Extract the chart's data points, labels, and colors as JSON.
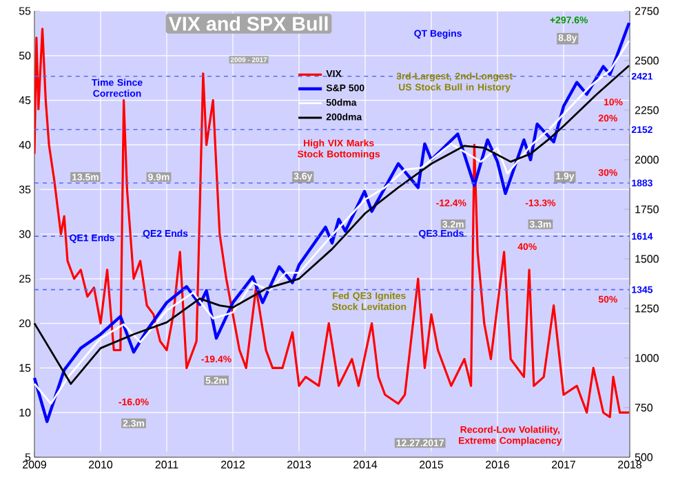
{
  "chart_data": {
    "type": "line",
    "title": "VIX and SPX Bull",
    "subtitle": "2009 - 2017",
    "xlim": [
      2009,
      2018
    ],
    "xticks": [
      2009,
      2010,
      2011,
      2012,
      2013,
      2014,
      2015,
      2016,
      2017,
      2018
    ],
    "ylim": [
      5,
      55
    ],
    "yticks": [
      5,
      10,
      15,
      20,
      25,
      30,
      35,
      40,
      45,
      50,
      55
    ],
    "y2lim": [
      500,
      2750
    ],
    "y2ticks": [
      500,
      750,
      1000,
      1250,
      1500,
      1750,
      2000,
      2250,
      2500,
      2750
    ],
    "grid": true,
    "legend": "top",
    "line_style": "solid",
    "series": [
      {
        "name": "VIX",
        "color": "#ff0000",
        "x": [
          2009.0,
          2009.03,
          2009.06,
          2009.12,
          2009.17,
          2009.22,
          2009.3,
          2009.4,
          2009.45,
          2009.5,
          2009.6,
          2009.7,
          2009.8,
          2009.9,
          2010.0,
          2010.1,
          2010.2,
          2010.3,
          2010.35,
          2010.4,
          2010.45,
          2010.5,
          2010.6,
          2010.7,
          2010.8,
          2010.9,
          2011.0,
          2011.1,
          2011.2,
          2011.3,
          2011.45,
          2011.55,
          2011.6,
          2011.7,
          2011.8,
          2011.9,
          2012.0,
          2012.1,
          2012.2,
          2012.35,
          2012.5,
          2012.6,
          2012.75,
          2012.9,
          2013.0,
          2013.1,
          2013.3,
          2013.45,
          2013.6,
          2013.8,
          2013.9,
          2014.1,
          2014.2,
          2014.3,
          2014.5,
          2014.6,
          2014.8,
          2014.9,
          2015.0,
          2015.1,
          2015.3,
          2015.5,
          2015.6,
          2015.65,
          2015.7,
          2015.8,
          2015.9,
          2016.0,
          2016.1,
          2016.2,
          2016.4,
          2016.48,
          2016.55,
          2016.7,
          2016.85,
          2017.0,
          2017.2,
          2017.35,
          2017.45,
          2017.6,
          2017.7,
          2017.75,
          2017.85,
          2017.99
        ],
        "values": [
          39,
          52,
          44,
          53,
          45,
          40,
          36,
          30,
          32,
          27,
          25,
          26,
          23,
          24,
          20,
          26,
          17,
          17,
          45,
          35,
          30,
          25,
          27,
          22,
          21,
          18,
          17,
          21,
          28,
          15,
          18,
          48,
          40,
          45,
          30,
          25,
          21,
          17,
          15,
          24,
          17,
          15,
          15,
          19,
          13,
          14,
          13,
          20,
          13,
          16,
          13,
          20,
          14,
          12,
          11,
          12,
          25,
          15,
          21,
          17,
          13,
          16,
          13,
          40,
          28,
          20,
          16,
          22,
          28,
          16,
          14,
          26,
          13,
          14,
          22,
          12,
          13,
          10,
          15,
          10,
          9.5,
          14,
          10,
          10
        ]
      },
      {
        "name": "S&P 500",
        "color": "#0000ff",
        "axis": "y2",
        "x": [
          2009.0,
          2009.19,
          2009.45,
          2009.7,
          2010.0,
          2010.3,
          2010.5,
          2010.7,
          2011.0,
          2011.3,
          2011.5,
          2011.6,
          2011.75,
          2012.0,
          2012.3,
          2012.45,
          2012.7,
          2012.9,
          2013.0,
          2013.4,
          2013.5,
          2013.6,
          2013.7,
          2013.99,
          2014.1,
          2014.5,
          2014.8,
          2014.9,
          2015.0,
          2015.4,
          2015.65,
          2015.85,
          2016.0,
          2016.12,
          2016.4,
          2016.5,
          2016.6,
          2016.85,
          2017.0,
          2017.2,
          2017.35,
          2017.6,
          2017.7,
          2017.99
        ],
        "values": [
          900,
          680,
          940,
          1050,
          1120,
          1210,
          1030,
          1140,
          1280,
          1360,
          1270,
          1340,
          1100,
          1280,
          1410,
          1280,
          1460,
          1380,
          1470,
          1660,
          1580,
          1700,
          1640,
          1840,
          1740,
          1980,
          1860,
          2080,
          2000,
          2130,
          1870,
          2100,
          1990,
          1830,
          2100,
          2000,
          2180,
          2090,
          2270,
          2390,
          2330,
          2470,
          2430,
          2690
        ]
      },
      {
        "name": "50dma",
        "color": "#ffffff",
        "axis": "y2",
        "x": [
          2009.0,
          2009.25,
          2009.5,
          2010.0,
          2010.35,
          2010.6,
          2011.0,
          2011.4,
          2011.7,
          2012.0,
          2012.3,
          2012.55,
          2012.8,
          2013.0,
          2013.5,
          2014.0,
          2014.3,
          2014.6,
          2014.85,
          2015.3,
          2015.75,
          2016.0,
          2016.15,
          2016.5,
          2016.8,
          2017.0,
          2017.4,
          2017.7,
          2017.99
        ],
        "values": [
          870,
          770,
          900,
          1100,
          1170,
          1080,
          1240,
          1330,
          1200,
          1230,
          1380,
          1340,
          1430,
          1430,
          1620,
          1800,
          1860,
          1950,
          1960,
          2080,
          1990,
          2060,
          1930,
          2070,
          2160,
          2230,
          2370,
          2450,
          2600
        ]
      },
      {
        "name": "200dma",
        "color": "#000000",
        "axis": "y2",
        "x": [
          2009.0,
          2009.55,
          2010.0,
          2010.5,
          2011.0,
          2011.5,
          2011.8,
          2012.0,
          2012.5,
          2013.0,
          2013.5,
          2014.0,
          2014.5,
          2015.0,
          2015.5,
          2015.8,
          2016.2,
          2016.5,
          2016.8,
          2017.0,
          2017.5,
          2017.99
        ],
        "values": [
          1175,
          870,
          1050,
          1120,
          1180,
          1300,
          1265,
          1255,
          1350,
          1400,
          1550,
          1730,
          1860,
          1980,
          2070,
          2060,
          1990,
          2030,
          2110,
          2170,
          2330,
          2475
        ]
      }
    ],
    "ref_lines": [
      {
        "axis": "y2",
        "value": 2421,
        "label": "2421",
        "color": "#5a6cf0",
        "line_style": "dashed"
      },
      {
        "axis": "y2",
        "value": 2152,
        "label": "2152",
        "color": "#5a6cf0",
        "line_style": "dashed"
      },
      {
        "axis": "y2",
        "value": 1883,
        "label": "1883",
        "color": "#5a6cf0",
        "line_style": "dashed"
      },
      {
        "axis": "y2",
        "value": 1614,
        "label": "1614",
        "color": "#5a6cf0",
        "line_style": "dashed"
      },
      {
        "axis": "y2",
        "value": 1345,
        "label": "1345",
        "color": "#5a6cf0",
        "line_style": "dashed"
      }
    ],
    "annotations": [
      "Time Since Correction",
      "13.5m",
      "9.9m",
      "3.6y",
      "1.9y",
      "High VIX Marks Stock Bottomings",
      "3rd-Largest, 2nd-Longest US Stock Bull in History",
      "QT Begins",
      "+297.6%",
      "8.8y",
      "10%",
      "20%",
      "30%",
      "40%",
      "50%",
      "QE1 Ends",
      "QE2 Ends",
      "QE3 Ends",
      "-16.0%",
      "2.3m",
      "-19.4%",
      "5.2m",
      "-12.4%",
      "3.2m",
      "-13.3%",
      "3.3m",
      "Fed QE3 Ignites Stock Levitation",
      "Record-Low Volatility, Extreme Complacency",
      "12.27.2017"
    ]
  }
}
